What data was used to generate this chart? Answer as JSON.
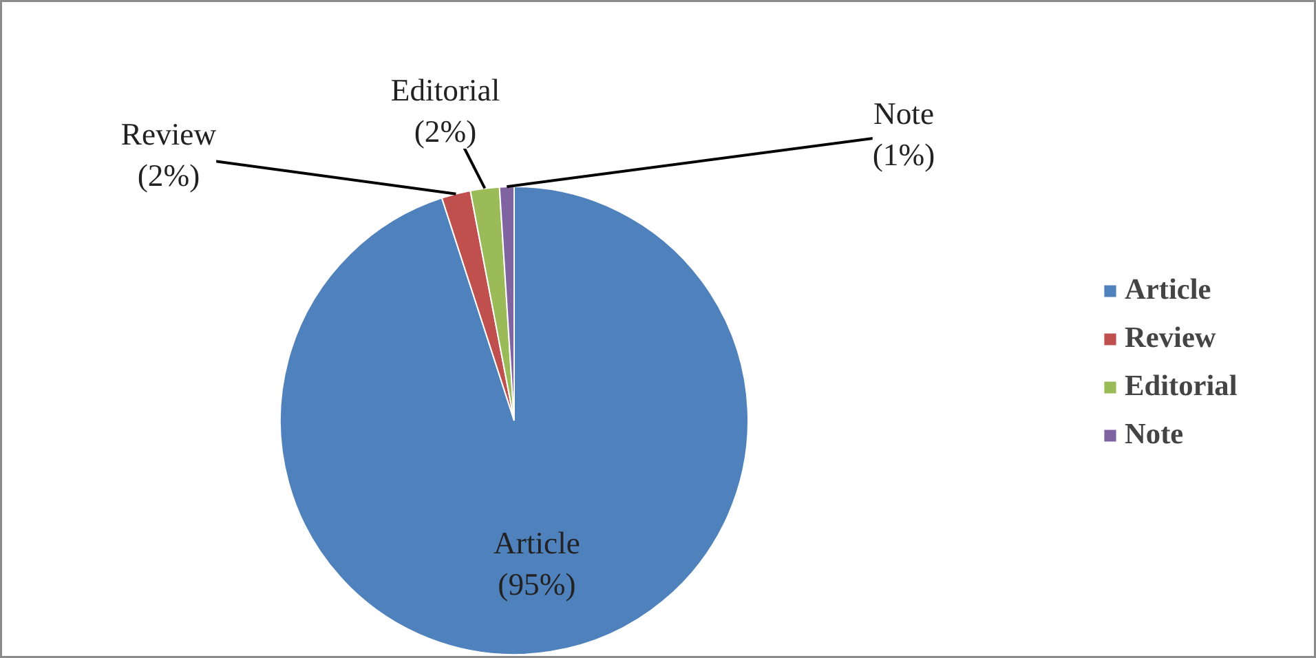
{
  "chart_data": {
    "type": "pie",
    "categories": [
      "Article",
      "Review",
      "Editorial",
      "Note"
    ],
    "values": [
      95,
      2,
      2,
      1
    ],
    "colors": [
      "#4f81bd",
      "#c0504d",
      "#9bbb59",
      "#8064a2"
    ],
    "value_labels": [
      "(95%)",
      "(2%)",
      "(2%)",
      "(1%)"
    ],
    "legend": "right"
  }
}
